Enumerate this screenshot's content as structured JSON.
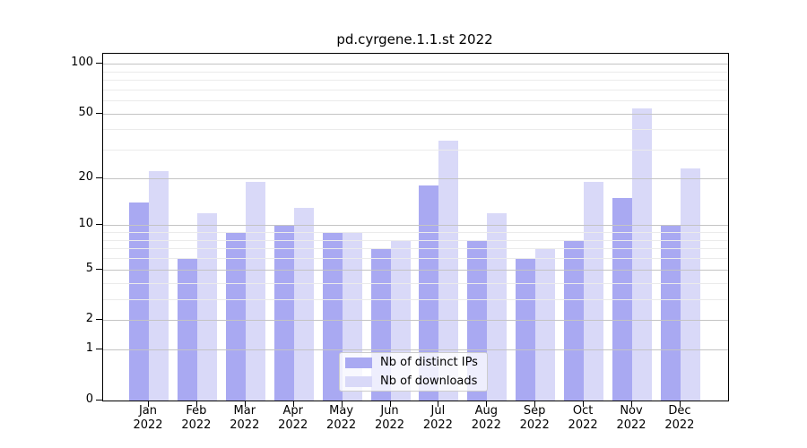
{
  "chart_data": {
    "type": "bar",
    "title": "pd.cyrgene.1.1.st 2022",
    "y_scale": "log10(value+1)",
    "ylim": [
      0,
      115
    ],
    "grid": true,
    "legend_position": "bottom-center",
    "categories": [
      "Jan",
      "Feb",
      "Mar",
      "Apr",
      "May",
      "Jun",
      "Jul",
      "Aug",
      "Sep",
      "Oct",
      "Nov",
      "Dec"
    ],
    "category_year": "2022",
    "series": [
      {
        "name": "Nb of distinct IPs",
        "color": "#a9a9f2",
        "values": [
          14,
          6,
          9,
          10,
          9,
          7,
          18,
          8,
          6,
          8,
          15,
          10
        ]
      },
      {
        "name": "Nb of downloads",
        "color": "#d9d9f8",
        "values": [
          22,
          12,
          19,
          13,
          9,
          8,
          34,
          12,
          7,
          19,
          54,
          23
        ]
      }
    ],
    "y_tick_labels": [
      100,
      50,
      20,
      10,
      5,
      2,
      1,
      0
    ],
    "y_minor_gridlines": [
      90,
      80,
      70,
      60,
      40,
      30,
      9,
      8,
      7,
      6,
      4,
      3
    ]
  }
}
